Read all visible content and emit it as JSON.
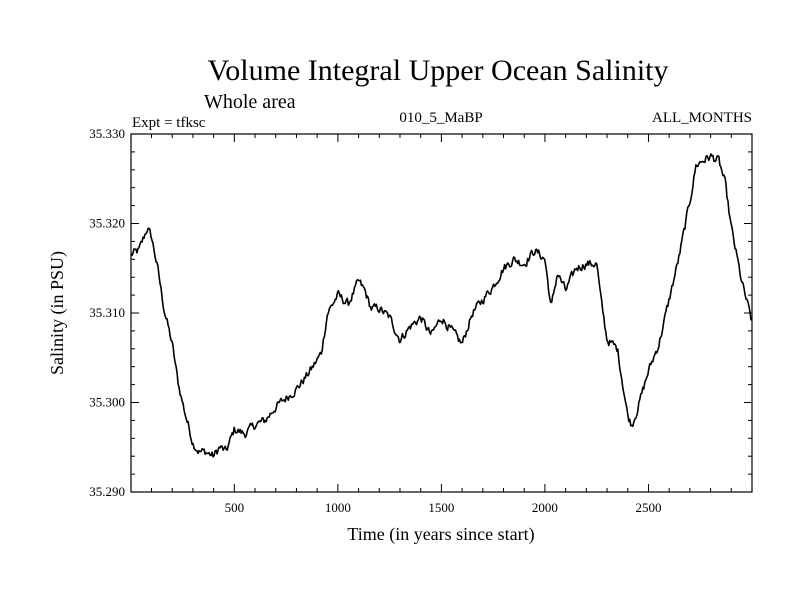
{
  "chart_data": {
    "type": "line",
    "title": "Volume Integral Upper Ocean Salinity",
    "subtitle": "Whole area",
    "left_header": "Expt = tfksc",
    "center_header": "010_5_MaBP",
    "right_header": "ALL_MONTHS",
    "xlabel": "Time (in years since start)",
    "ylabel": "Salinity (in PSU)",
    "xlim": [
      1,
      3000
    ],
    "ylim": [
      35.29,
      35.33
    ],
    "x_ticks": [
      500,
      1000,
      1500,
      2000,
      2500
    ],
    "x_tick_labels": [
      "500",
      "1000",
      "1500",
      "2000",
      "2500"
    ],
    "y_ticks": [
      35.29,
      35.3,
      35.31,
      35.32,
      35.33
    ],
    "y_tick_labels": [
      "35.290",
      "35.300",
      "35.310",
      "35.320",
      "35.330"
    ],
    "grid": false,
    "series": [
      {
        "name": "Salinity",
        "color": "#000000",
        "x": [
          1,
          40,
          80,
          100,
          130,
          160,
          200,
          230,
          260,
          300,
          330,
          360,
          400,
          430,
          460,
          500,
          550,
          600,
          650,
          700,
          750,
          800,
          850,
          880,
          920,
          950,
          1000,
          1050,
          1100,
          1130,
          1160,
          1200,
          1250,
          1300,
          1350,
          1400,
          1450,
          1500,
          1550,
          1600,
          1650,
          1700,
          1750,
          1800,
          1850,
          1900,
          1950,
          2000,
          2030,
          2060,
          2100,
          2150,
          2200,
          2250,
          2270,
          2300,
          2350,
          2400,
          2420,
          2450,
          2500,
          2550,
          2600,
          2650,
          2700,
          2730,
          2760,
          2800,
          2840,
          2870,
          2900,
          2950,
          3000
        ],
        "values": [
          35.3165,
          35.317,
          35.3195,
          35.3185,
          35.315,
          35.3105,
          35.3065,
          35.302,
          35.299,
          35.2955,
          35.2945,
          35.2945,
          35.294,
          35.295,
          35.2945,
          35.297,
          35.2965,
          35.2975,
          35.298,
          35.2995,
          35.3005,
          35.3015,
          35.303,
          35.304,
          35.3055,
          35.31,
          35.312,
          35.311,
          35.3135,
          35.3125,
          35.3105,
          35.3105,
          35.3095,
          35.307,
          35.3085,
          35.3095,
          35.3075,
          35.3095,
          35.308,
          35.3065,
          35.31,
          35.3115,
          35.313,
          35.315,
          35.316,
          35.3155,
          35.317,
          35.316,
          35.3105,
          35.3145,
          35.3125,
          35.315,
          35.3155,
          35.3155,
          35.3115,
          35.307,
          35.306,
          35.2985,
          35.2975,
          35.2995,
          35.3035,
          35.3065,
          35.3115,
          35.3165,
          35.3225,
          35.3265,
          35.327,
          35.3275,
          35.327,
          35.3245,
          35.3195,
          35.3135,
          35.309
        ]
      }
    ]
  }
}
